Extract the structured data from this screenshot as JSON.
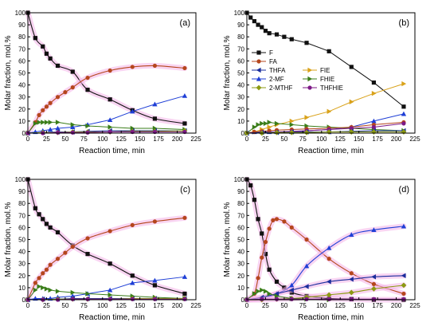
{
  "figure": {
    "panel_common": {
      "xlabel": "Reaction time, min",
      "ylabel": "Molar fraction, mol.%",
      "xlim": [
        0,
        225
      ],
      "ylim": [
        0,
        100
      ],
      "xticks": [
        0,
        25,
        50,
        75,
        100,
        125,
        150,
        175,
        200,
        225
      ],
      "yticks": [
        0,
        10,
        20,
        30,
        40,
        50,
        60,
        70,
        80,
        90,
        100
      ],
      "grid": false
    },
    "legend": {
      "placement": "inside panel (b), center-left",
      "entries": [
        {
          "name": "F",
          "color": "#111111",
          "marker": "square"
        },
        {
          "name": "FA",
          "color": "#b5461d",
          "marker": "circle"
        },
        {
          "name": "THFA",
          "color": "#1a2d9c",
          "marker": "triangle-left"
        },
        {
          "name": "2-MF",
          "color": "#1f3fd6",
          "marker": "triangle-up"
        },
        {
          "name": "2-MTHF",
          "color": "#8c9a12",
          "marker": "diamond"
        },
        {
          "name": "FIE",
          "color": "#d9a21a",
          "marker": "triangle-right"
        },
        {
          "name": "FHIE",
          "color": "#3a7d19",
          "marker": "triangle-right"
        },
        {
          "name": "THFHIE",
          "color": "#7d1a86",
          "marker": "circle"
        }
      ]
    }
  },
  "chart_data": [
    {
      "type": "line",
      "panel_label": "(a)",
      "xlabel": "Reaction time, min",
      "ylabel": "Molar fraction, mol.%",
      "xlim": [
        0,
        225
      ],
      "ylim": [
        0,
        100
      ],
      "series": [
        {
          "name": "F",
          "color": "#111111",
          "marker": "square",
          "fit": true,
          "x": [
            0,
            10,
            20,
            25,
            30,
            40,
            60,
            80,
            110,
            140,
            170,
            210
          ],
          "y": [
            100,
            79,
            72,
            66,
            62,
            56,
            51,
            36,
            28,
            19,
            12,
            8
          ]
        },
        {
          "name": "FA",
          "color": "#b5461d",
          "marker": "circle",
          "fit": true,
          "x": [
            0,
            10,
            15,
            20,
            25,
            30,
            40,
            50,
            60,
            80,
            110,
            140,
            170,
            210
          ],
          "y": [
            0,
            9,
            15,
            19,
            22,
            25,
            30,
            34,
            38,
            46,
            52,
            55,
            56,
            54
          ]
        },
        {
          "name": "2-MF",
          "color": "#1f3fd6",
          "marker": "triangle-up",
          "fit": false,
          "x": [
            0,
            10,
            20,
            30,
            40,
            60,
            80,
            110,
            140,
            170,
            210
          ],
          "y": [
            0,
            1,
            2,
            3,
            4,
            5,
            7,
            11,
            18,
            24,
            31
          ]
        },
        {
          "name": "FHIE",
          "color": "#3a7d19",
          "marker": "triangle-right",
          "fit": false,
          "x": [
            0,
            10,
            15,
            20,
            25,
            30,
            40,
            60,
            80,
            110,
            140,
            170,
            210
          ],
          "y": [
            0,
            8,
            9,
            9,
            9,
            9,
            9,
            7,
            6,
            5,
            4,
            4,
            3
          ]
        },
        {
          "name": "THFA",
          "color": "#1a2d9c",
          "marker": "triangle-left",
          "fit": false,
          "x": [
            0,
            20,
            40,
            60,
            80,
            110,
            140,
            170,
            210
          ],
          "y": [
            0,
            0.5,
            1,
            1,
            1.5,
            2,
            2,
            2,
            2
          ]
        },
        {
          "name": "2-MTHF",
          "color": "#8c9a12",
          "marker": "diamond",
          "fit": false,
          "x": [
            0,
            20,
            40,
            60,
            80,
            110,
            140,
            170,
            210
          ],
          "y": [
            0,
            0.5,
            0.5,
            1,
            1,
            1,
            1.5,
            1.5,
            2
          ]
        },
        {
          "name": "THFHIE",
          "color": "#7d1a86",
          "marker": "circle",
          "fit": false,
          "x": [
            0,
            20,
            40,
            60,
            80,
            110,
            140,
            170,
            210
          ],
          "y": [
            0,
            0,
            0.5,
            0.5,
            0.5,
            1,
            1,
            1,
            1
          ]
        }
      ]
    },
    {
      "type": "line",
      "panel_label": "(b)",
      "xlabel": "Reaction time, min",
      "ylabel": "Molar fraction, mol.%",
      "xlim": [
        0,
        225
      ],
      "ylim": [
        0,
        100
      ],
      "series": [
        {
          "name": "F",
          "color": "#111111",
          "marker": "square",
          "fit": false,
          "x": [
            0,
            5,
            10,
            15,
            20,
            25,
            30,
            40,
            50,
            60,
            80,
            110,
            140,
            170,
            210
          ],
          "y": [
            100,
            96,
            93,
            90,
            88,
            85,
            83,
            82,
            80,
            78,
            75,
            68,
            55,
            42,
            22
          ]
        },
        {
          "name": "FIE",
          "color": "#d9a21a",
          "marker": "triangle-right",
          "fit": false,
          "x": [
            0,
            10,
            20,
            30,
            40,
            60,
            80,
            110,
            140,
            170,
            210
          ],
          "y": [
            0,
            1,
            3,
            5,
            7,
            10,
            13,
            18,
            26,
            33,
            41
          ]
        },
        {
          "name": "2-MF",
          "color": "#1f3fd6",
          "marker": "triangle-up",
          "fit": false,
          "x": [
            0,
            10,
            20,
            30,
            40,
            60,
            80,
            110,
            140,
            170,
            210
          ],
          "y": [
            0,
            1,
            1,
            1,
            1,
            1,
            2,
            3,
            5,
            10,
            16
          ]
        },
        {
          "name": "FHIE",
          "color": "#3a7d19",
          "marker": "triangle-right",
          "fit": false,
          "x": [
            0,
            10,
            15,
            20,
            25,
            30,
            40,
            60,
            80,
            110,
            140,
            170,
            210
          ],
          "y": [
            0,
            5,
            7,
            8,
            8,
            9,
            8,
            7,
            6,
            5,
            4,
            3,
            2
          ]
        },
        {
          "name": "FA",
          "color": "#b5461d",
          "marker": "circle",
          "fit": false,
          "x": [
            0,
            10,
            20,
            30,
            40,
            60,
            80,
            110,
            140,
            170,
            210
          ],
          "y": [
            0,
            1,
            1.5,
            2,
            2.5,
            3,
            3.5,
            4,
            5,
            7,
            9
          ]
        },
        {
          "name": "THFHIE",
          "color": "#7d1a86",
          "marker": "circle",
          "fit": false,
          "x": [
            0,
            20,
            40,
            60,
            80,
            110,
            140,
            170,
            210
          ],
          "y": [
            0,
            0.5,
            1,
            1.5,
            2,
            3,
            4,
            5,
            8
          ]
        },
        {
          "name": "THFA",
          "color": "#1a2d9c",
          "marker": "triangle-left",
          "fit": false,
          "x": [
            0,
            20,
            40,
            60,
            80,
            110,
            140,
            170,
            210
          ],
          "y": [
            0,
            0.5,
            0.5,
            1,
            1,
            1,
            1.5,
            2,
            2
          ]
        },
        {
          "name": "2-MTHF",
          "color": "#8c9a12",
          "marker": "diamond",
          "fit": false,
          "x": [
            0,
            20,
            40,
            60,
            80,
            110,
            140,
            170,
            210
          ],
          "y": [
            0,
            0,
            0.5,
            0.5,
            0.5,
            1,
            1,
            1,
            1
          ]
        }
      ]
    },
    {
      "type": "line",
      "panel_label": "(c)",
      "xlabel": "Reaction time, min",
      "ylabel": "Molar fraction, mol.%",
      "xlim": [
        0,
        225
      ],
      "ylim": [
        0,
        100
      ],
      "series": [
        {
          "name": "F",
          "color": "#111111",
          "marker": "square",
          "fit": true,
          "x": [
            0,
            10,
            15,
            20,
            25,
            30,
            40,
            60,
            80,
            110,
            140,
            170,
            210
          ],
          "y": [
            100,
            76,
            71,
            67,
            63,
            60,
            56,
            45,
            38,
            30,
            20,
            12,
            5
          ]
        },
        {
          "name": "FA",
          "color": "#b5461d",
          "marker": "circle",
          "fit": true,
          "x": [
            0,
            10,
            15,
            20,
            25,
            30,
            40,
            50,
            60,
            80,
            110,
            140,
            170,
            210
          ],
          "y": [
            0,
            14,
            18,
            22,
            25,
            29,
            34,
            39,
            44,
            51,
            57,
            62,
            65,
            68
          ]
        },
        {
          "name": "2-MF",
          "color": "#1f3fd6",
          "marker": "triangle-up",
          "fit": false,
          "x": [
            0,
            10,
            20,
            30,
            40,
            60,
            80,
            110,
            140,
            170,
            210
          ],
          "y": [
            0,
            1,
            1,
            1,
            2,
            3,
            5,
            8,
            14,
            16,
            19
          ]
        },
        {
          "name": "FHIE",
          "color": "#3a7d19",
          "marker": "triangle-right",
          "fit": false,
          "x": [
            0,
            10,
            15,
            20,
            25,
            30,
            40,
            60,
            80,
            110,
            140,
            170,
            210
          ],
          "y": [
            0,
            8,
            11,
            10,
            9,
            8,
            7,
            6,
            5,
            4,
            3,
            2,
            1
          ]
        },
        {
          "name": "THFA",
          "color": "#1a2d9c",
          "marker": "triangle-left",
          "fit": false,
          "x": [
            0,
            20,
            40,
            60,
            80,
            110,
            140,
            170,
            210
          ],
          "y": [
            0,
            0.5,
            0.5,
            1,
            1,
            1,
            1,
            1,
            1
          ]
        },
        {
          "name": "2-MTHF",
          "color": "#8c9a12",
          "marker": "diamond",
          "fit": false,
          "x": [
            0,
            20,
            40,
            60,
            80,
            110,
            140,
            170,
            210
          ],
          "y": [
            0,
            0,
            0.5,
            0.5,
            0.5,
            0.5,
            1,
            1,
            1
          ]
        },
        {
          "name": "THFHIE",
          "color": "#7d1a86",
          "marker": "circle",
          "fit": false,
          "x": [
            0,
            20,
            40,
            60,
            80,
            110,
            140,
            170,
            210
          ],
          "y": [
            0,
            0,
            0,
            0.5,
            0.5,
            0.5,
            0.5,
            0.5,
            0.5
          ]
        }
      ]
    },
    {
      "type": "line",
      "panel_label": "(d)",
      "xlabel": "Reaction time, min",
      "ylabel": "Molar fraction, mol.%",
      "xlim": [
        0,
        225
      ],
      "ylim": [
        0,
        100
      ],
      "series": [
        {
          "name": "F",
          "color": "#111111",
          "marker": "square",
          "fit": true,
          "x": [
            0,
            5,
            10,
            15,
            20,
            25,
            30,
            40,
            50,
            60,
            80,
            110,
            140,
            170,
            210
          ],
          "y": [
            100,
            95,
            83,
            67,
            55,
            38,
            25,
            15,
            10,
            6,
            3,
            1,
            0.5,
            0,
            0
          ]
        },
        {
          "name": "FA",
          "color": "#b5461d",
          "marker": "circle",
          "fit": true,
          "x": [
            0,
            10,
            15,
            20,
            25,
            30,
            35,
            40,
            50,
            60,
            80,
            110,
            140,
            170,
            210
          ],
          "y": [
            0,
            5,
            18,
            35,
            48,
            59,
            66,
            67,
            65,
            60,
            50,
            34,
            22,
            13,
            5
          ]
        },
        {
          "name": "2-MF",
          "color": "#1f3fd6",
          "marker": "triangle-up",
          "fit": true,
          "x": [
            0,
            20,
            40,
            60,
            80,
            110,
            140,
            170,
            210
          ],
          "y": [
            0,
            1,
            5,
            12,
            28,
            43,
            54,
            58,
            61
          ]
        },
        {
          "name": "THFA",
          "color": "#1a2d9c",
          "marker": "triangle-left",
          "fit": true,
          "x": [
            0,
            20,
            40,
            60,
            80,
            110,
            140,
            170,
            210
          ],
          "y": [
            0,
            2,
            5,
            8,
            11,
            15,
            17,
            19,
            20
          ]
        },
        {
          "name": "2-MTHF",
          "color": "#8c9a12",
          "marker": "diamond",
          "fit": true,
          "x": [
            0,
            20,
            40,
            60,
            80,
            110,
            140,
            170,
            210
          ],
          "y": [
            0,
            0,
            0.5,
            1,
            2,
            4,
            6,
            9,
            12
          ]
        },
        {
          "name": "FHIE",
          "color": "#3a7d19",
          "marker": "triangle-right",
          "fit": false,
          "x": [
            0,
            10,
            15,
            20,
            25,
            30,
            40,
            60,
            80,
            110
          ],
          "y": [
            0,
            5,
            7,
            8,
            7,
            5,
            3,
            1,
            0.5,
            0
          ]
        },
        {
          "name": "THFHIE",
          "color": "#7d1a86",
          "marker": "circle",
          "fit": false,
          "x": [
            0,
            20,
            40,
            60,
            80,
            110,
            140,
            170,
            210
          ],
          "y": [
            0,
            0.5,
            0.5,
            0.5,
            0.5,
            0.5,
            0.5,
            0.5,
            0.5
          ]
        }
      ]
    }
  ]
}
